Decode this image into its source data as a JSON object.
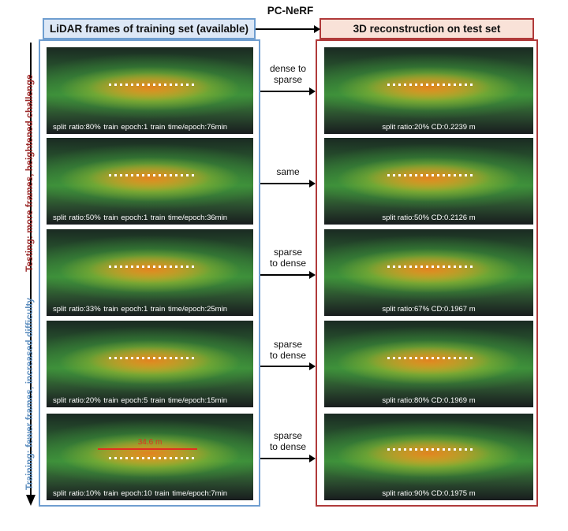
{
  "method_label": "PC-NeRF",
  "header_left": "LiDAR frames of training set (available)",
  "header_right": "3D reconstruction on test set",
  "axis_testing": "Testing: more frames, heightened challenge",
  "axis_training": "Training: fewer frames, increased difficulty",
  "distance_annotation": "34.6 m",
  "rows": [
    {
      "train_caption": "split ratio:80%   train epoch:1   train time/epoch:76min",
      "relation_lines": [
        "dense to",
        "sparse"
      ],
      "test_caption": "split ratio:20%  CD:0.2239 m"
    },
    {
      "train_caption": "split ratio:50%   train epoch:1   train time/epoch:36min",
      "relation_lines": [
        "same"
      ],
      "test_caption": "split ratio:50%  CD:0.2126 m"
    },
    {
      "train_caption": "split ratio:33%   train epoch:1   train time/epoch:25min",
      "relation_lines": [
        "sparse",
        "to dense"
      ],
      "test_caption": "split ratio:67%  CD:0.1967 m"
    },
    {
      "train_caption": "split ratio:20%   train epoch:5   train time/epoch:15min",
      "relation_lines": [
        "sparse",
        "to dense"
      ],
      "test_caption": "split ratio:80%  CD:0.1969 m"
    },
    {
      "train_caption": "split ratio:10%   train epoch:10   train time/epoch:7min",
      "relation_lines": [
        "sparse",
        "to dense"
      ],
      "test_caption": "split ratio:90%  CD:0.1975 m"
    }
  ]
}
